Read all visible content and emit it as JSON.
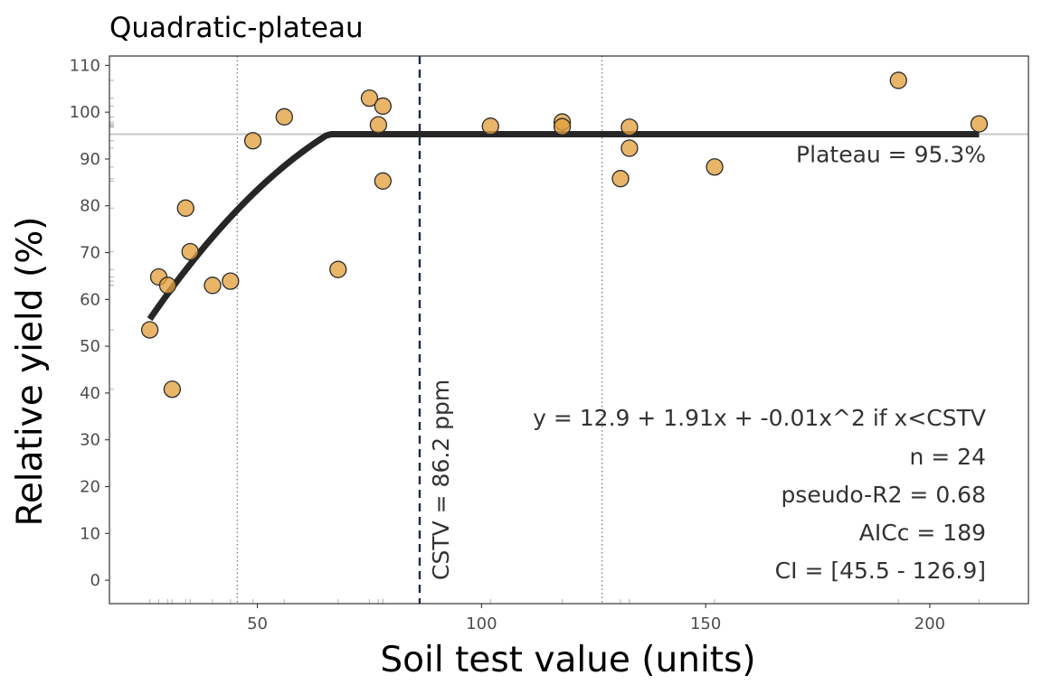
{
  "chart_data": {
    "type": "scatter",
    "title": "Quadratic-plateau",
    "xlabel": "Soil test value (units)",
    "ylabel": "Relative yield (%)",
    "xlim": [
      17,
      222
    ],
    "ylim": [
      -5,
      112
    ],
    "x_ticks": [
      50,
      100,
      150,
      200
    ],
    "y_ticks": [
      0,
      10,
      20,
      30,
      40,
      50,
      60,
      70,
      80,
      90,
      100,
      110
    ],
    "grid": false,
    "points": [
      {
        "x": 26.0,
        "y": 53.5
      },
      {
        "x": 28.0,
        "y": 64.8
      },
      {
        "x": 30.0,
        "y": 63.0
      },
      {
        "x": 31.0,
        "y": 40.8
      },
      {
        "x": 34.0,
        "y": 79.5
      },
      {
        "x": 35.0,
        "y": 70.2
      },
      {
        "x": 40.0,
        "y": 63.0
      },
      {
        "x": 44.0,
        "y": 63.9
      },
      {
        "x": 49.0,
        "y": 93.9
      },
      {
        "x": 56.0,
        "y": 99.0
      },
      {
        "x": 68.0,
        "y": 66.4
      },
      {
        "x": 75.0,
        "y": 103.0
      },
      {
        "x": 77.0,
        "y": 97.3
      },
      {
        "x": 78.0,
        "y": 101.3
      },
      {
        "x": 78.0,
        "y": 85.3
      },
      {
        "x": 102.0,
        "y": 97.0
      },
      {
        "x": 118.0,
        "y": 97.9
      },
      {
        "x": 118.0,
        "y": 96.9
      },
      {
        "x": 131.0,
        "y": 85.8
      },
      {
        "x": 133.0,
        "y": 92.3
      },
      {
        "x": 133.0,
        "y": 96.8
      },
      {
        "x": 152.0,
        "y": 88.3
      },
      {
        "x": 193.0,
        "y": 106.8
      },
      {
        "x": 211.0,
        "y": 97.5
      }
    ],
    "model": {
      "a": 12.9,
      "b": 1.91,
      "c": -0.01,
      "plateau": 95.3,
      "cstv": 86.2,
      "x_range": [
        26,
        211
      ]
    },
    "ci": [
      45.5,
      126.9
    ],
    "point_color": "#e2a03f",
    "curve_color": "#262626",
    "cstv_line_color": "#1b2a4a",
    "labels": {
      "cstv": "CSTV = 86.2 ppm",
      "plateau": "Plateau = 95.3%",
      "equation": "y = 12.9 + 1.91x + -0.01x^2 if x<CSTV",
      "n": "n = 24",
      "r2": "pseudo-R2 = 0.68",
      "aicc": "AICc = 189",
      "ci": "CI = [45.5 - 126.9]"
    }
  }
}
